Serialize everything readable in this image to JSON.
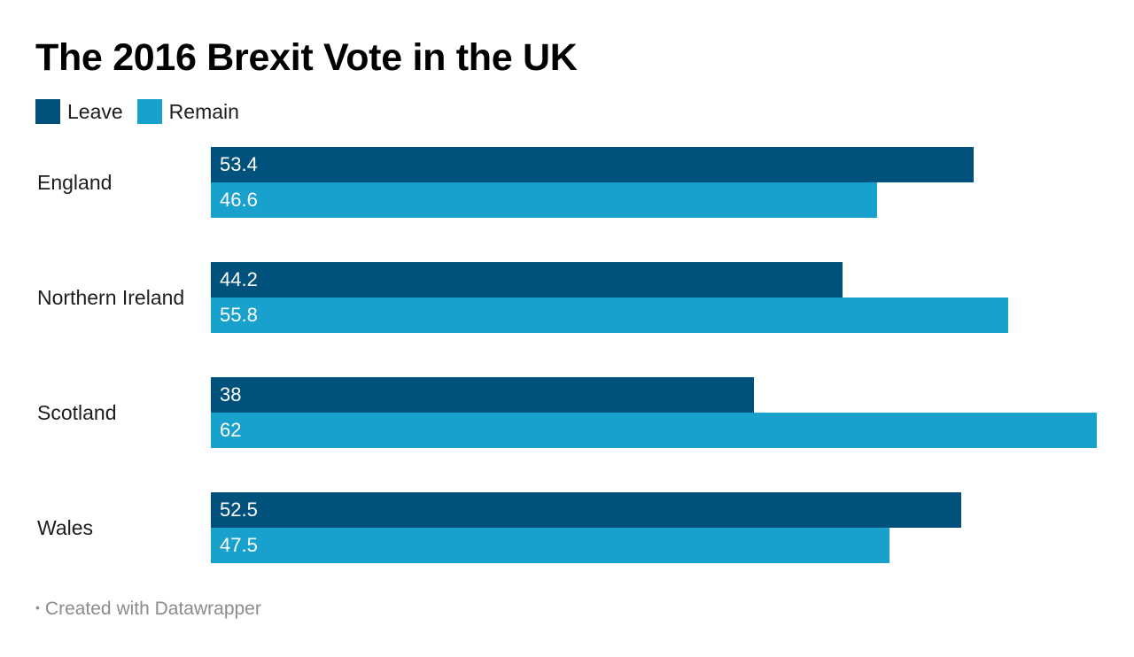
{
  "chart_data": {
    "type": "bar",
    "orientation": "horizontal",
    "title": "The 2016 Brexit Vote in the UK",
    "categories": [
      "England",
      "Northern Ireland",
      "Scotland",
      "Wales"
    ],
    "series": [
      {
        "name": "Leave",
        "color": "#00527c",
        "values": [
          53.4,
          44.2,
          38,
          52.5
        ]
      },
      {
        "name": "Remain",
        "color": "#18a1cd",
        "values": [
          46.6,
          55.8,
          62,
          47.5
        ]
      }
    ],
    "xlim": [
      0,
      62
    ],
    "grid": false,
    "legend_placement": "top-left"
  },
  "footer": {
    "bullet": "•",
    "text": "Created with Datawrapper"
  }
}
